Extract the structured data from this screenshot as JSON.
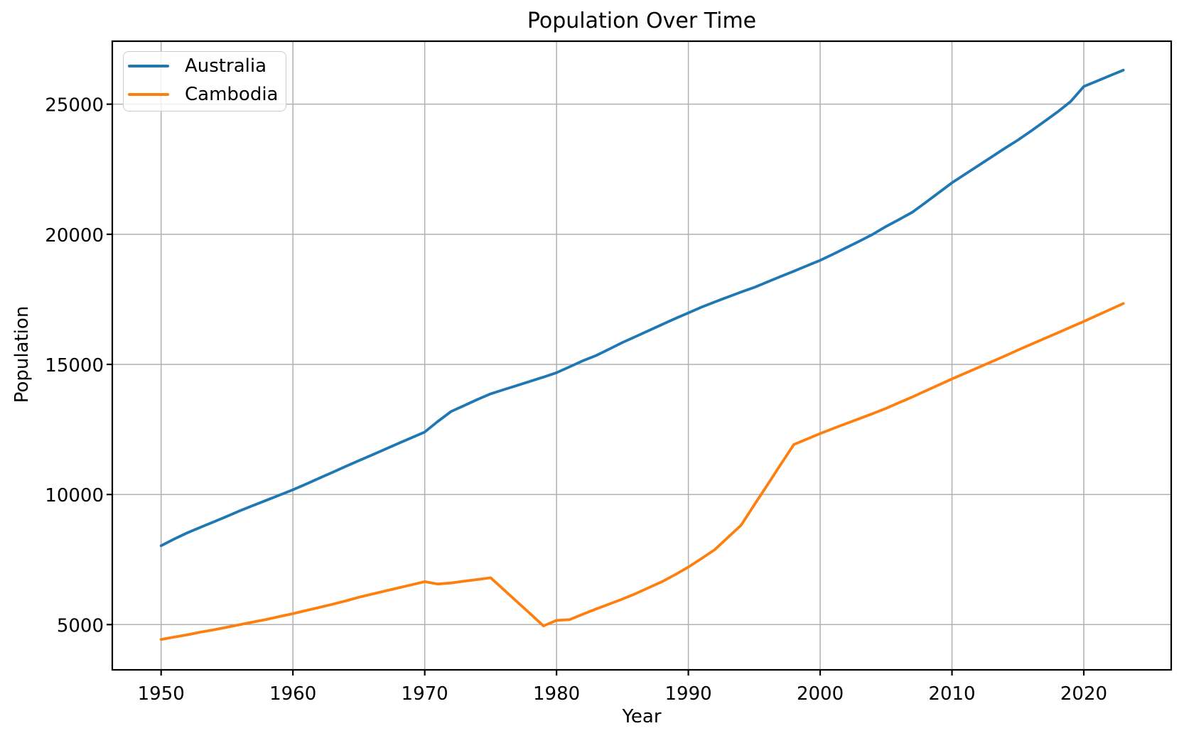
{
  "figure": {
    "background": "#ffffff",
    "frame_color": "#000000",
    "grid_color": "#b0b0b0",
    "text_color": "#000000"
  },
  "chart_data": {
    "type": "line",
    "title": "Population Over Time",
    "xlabel": "Year",
    "ylabel": "Population",
    "grid": true,
    "legend_position": "upper left",
    "xticks": [
      1950,
      1960,
      1970,
      1980,
      1990,
      2000,
      2010,
      2020
    ],
    "yticks": [
      5000,
      10000,
      15000,
      20000,
      25000
    ],
    "xlim": [
      1946.35,
      2026.65
    ],
    "ylim": [
      3260,
      27420
    ],
    "x": [
      1950,
      1951,
      1952,
      1953,
      1954,
      1955,
      1956,
      1957,
      1958,
      1959,
      1960,
      1961,
      1962,
      1963,
      1964,
      1965,
      1966,
      1967,
      1968,
      1969,
      1970,
      1971,
      1972,
      1973,
      1974,
      1975,
      1976,
      1977,
      1978,
      1979,
      1980,
      1981,
      1982,
      1983,
      1984,
      1985,
      1986,
      1987,
      1988,
      1989,
      1990,
      1991,
      1992,
      1993,
      1994,
      1995,
      1996,
      1997,
      1998,
      1999,
      2000,
      2001,
      2002,
      2003,
      2004,
      2005,
      2006,
      2007,
      2008,
      2009,
      2010,
      2011,
      2012,
      2013,
      2014,
      2015,
      2016,
      2017,
      2018,
      2019,
      2020,
      2021,
      2022,
      2023
    ],
    "series": [
      {
        "name": "Australia",
        "color": "#1f77b4",
        "values": [
          8030,
          8290,
          8530,
          8740,
          8950,
          9160,
          9380,
          9580,
          9780,
          9980,
          10180,
          10400,
          10630,
          10850,
          11080,
          11300,
          11520,
          11740,
          11960,
          12180,
          12400,
          12810,
          13190,
          13420,
          13650,
          13870,
          14030,
          14190,
          14350,
          14510,
          14680,
          14910,
          15140,
          15340,
          15590,
          15840,
          16070,
          16300,
          16530,
          16760,
          16980,
          17200,
          17400,
          17590,
          17780,
          17960,
          18170,
          18380,
          18580,
          18790,
          19000,
          19240,
          19490,
          19740,
          20000,
          20300,
          20570,
          20850,
          21220,
          21600,
          21980,
          22310,
          22640,
          22970,
          23300,
          23620,
          23970,
          24330,
          24700,
          25100,
          25680,
          25890,
          26100,
          26310
        ]
      },
      {
        "name": "Cambodia",
        "color": "#ff7f0e",
        "values": [
          4430,
          4520,
          4610,
          4710,
          4800,
          4900,
          5000,
          5100,
          5200,
          5310,
          5420,
          5540,
          5660,
          5780,
          5910,
          6050,
          6170,
          6290,
          6410,
          6530,
          6650,
          6560,
          6600,
          6670,
          6730,
          6800,
          6340,
          5880,
          5420,
          4950,
          5160,
          5190,
          5400,
          5600,
          5790,
          5980,
          6190,
          6420,
          6650,
          6920,
          7210,
          7540,
          7880,
          8350,
          8820,
          9600,
          10370,
          11150,
          11920,
          12130,
          12340,
          12540,
          12730,
          12920,
          13110,
          13310,
          13530,
          13750,
          13980,
          14210,
          14440,
          14660,
          14880,
          15100,
          15320,
          15550,
          15770,
          15990,
          16210,
          16430,
          16650,
          16880,
          17110,
          17340
        ]
      }
    ]
  }
}
